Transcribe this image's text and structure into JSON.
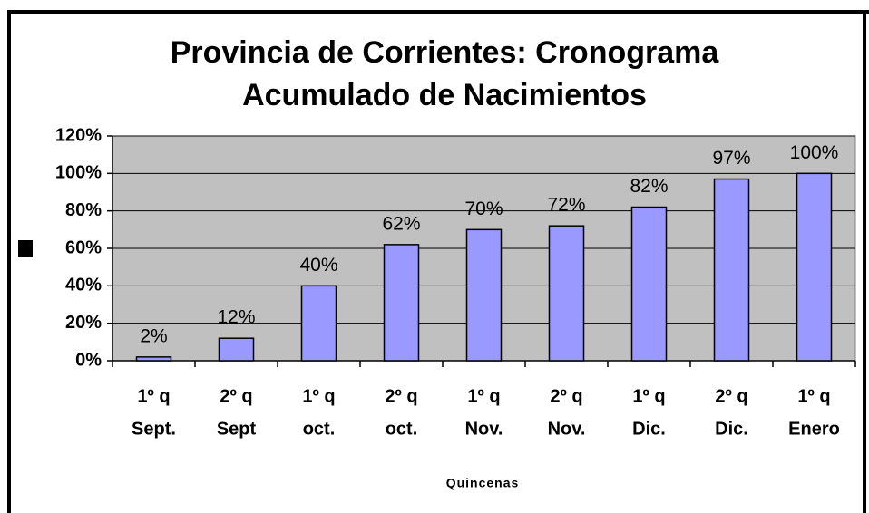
{
  "chart_data": {
    "type": "bar",
    "title": [
      "Provincia de Corrientes: Cronograma",
      "Acumulado de Nacimientos"
    ],
    "x_label": "Quincenas",
    "categories": [
      [
        "1º q",
        "Sept."
      ],
      [
        "2º q",
        "Sept"
      ],
      [
        "1º q",
        "oct."
      ],
      [
        "2º q",
        "oct."
      ],
      [
        "1º q",
        "Nov."
      ],
      [
        "2º q",
        "Nov."
      ],
      [
        "1º q",
        "Dic."
      ],
      [
        "2º q",
        "Dic."
      ],
      [
        "1º q",
        "Enero"
      ]
    ],
    "values": [
      2,
      12,
      40,
      62,
      70,
      72,
      82,
      97,
      100
    ],
    "value_labels": [
      "2%",
      "12%",
      "40%",
      "62%",
      "70%",
      "72%",
      "82%",
      "97%",
      "100%"
    ],
    "color": "#9999ff",
    "ylim": [
      0,
      120
    ],
    "yticks": [
      {
        "value": 0,
        "label": "0%"
      },
      {
        "value": 20,
        "label": "20%"
      },
      {
        "value": 40,
        "label": "40%"
      },
      {
        "value": 60,
        "label": "60%"
      },
      {
        "value": 80,
        "label": "80%"
      },
      {
        "value": 100,
        "label": "100%"
      },
      {
        "value": 120,
        "label": "120%"
      }
    ],
    "grid": true
  }
}
